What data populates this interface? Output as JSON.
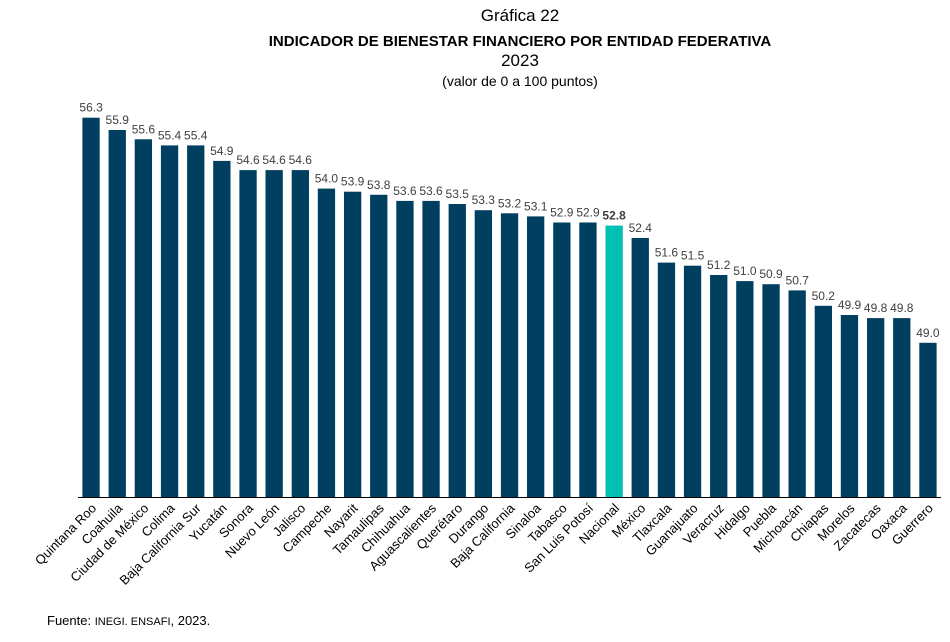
{
  "header": {
    "graph_number": "Gráfica 22",
    "title": "INDICADOR DE BIENESTAR FINANCIERO POR ENTIDAD FEDERATIVA",
    "year": "2023",
    "subtitle": "(valor de 0 a 100 puntos)"
  },
  "footer": {
    "prefix": "Fuente: ",
    "source": "INEGI. ENSAFI",
    "suffix": ", 2023."
  },
  "colors": {
    "bar": "#003f5f",
    "highlight": "#00bfb3",
    "label": "#404040",
    "axis": "#000000"
  },
  "chart_data": {
    "type": "bar",
    "title": "INDICADOR DE BIENESTAR FINANCIERO POR ENTIDAD FEDERATIVA",
    "subtitle": "2023 (valor de 0 a 100 puntos)",
    "xlabel": "",
    "ylabel": "",
    "ylim": [
      44,
      58.3
    ],
    "grid": false,
    "highlight_category": "Nacional",
    "categories": [
      "Quintana Roo",
      "Coahuila",
      "Ciudad de México",
      "Colima",
      "Baja California Sur",
      "Yucatán",
      "Sonora",
      "Nuevo León",
      "Jalisco",
      "Campeche",
      "Nayarit",
      "Tamaulipas",
      "Chihuahua",
      "Aguascalientes",
      "Querétaro",
      "Durango",
      "Baja California",
      "Sinaloa",
      "Tabasco",
      "San Luis Potosí",
      "Nacional",
      "México",
      "Tlaxcala",
      "Guanajuato",
      "Veracruz",
      "Hidalgo",
      "Puebla",
      "Michoacán",
      "Chiapas",
      "Morelos",
      "Zacatecas",
      "Oaxaca",
      "Guerrero"
    ],
    "values": [
      56.3,
      55.9,
      55.6,
      55.4,
      55.4,
      54.9,
      54.6,
      54.6,
      54.6,
      54.0,
      53.9,
      53.8,
      53.6,
      53.6,
      53.5,
      53.3,
      53.2,
      53.1,
      52.9,
      52.9,
      52.8,
      52.4,
      51.6,
      51.5,
      51.2,
      51.0,
      50.9,
      50.7,
      50.2,
      49.9,
      49.8,
      49.8,
      49.0
    ],
    "data_labels": [
      "56.3",
      "55.9",
      "55.6",
      "55.4",
      "55.4",
      "54.9",
      "54.6",
      "54.6",
      "54.6",
      "54.0",
      "53.9",
      "53.8",
      "53.6",
      "53.6",
      "53.5",
      "53.3",
      "53.2",
      "53.1",
      "52.9",
      "52.9",
      "52.8",
      "52.4",
      "51.6",
      "51.5",
      "51.2",
      "51.0",
      "50.9",
      "50.7",
      "50.2",
      "49.9",
      "49.8",
      "49.8",
      "49.0"
    ]
  }
}
